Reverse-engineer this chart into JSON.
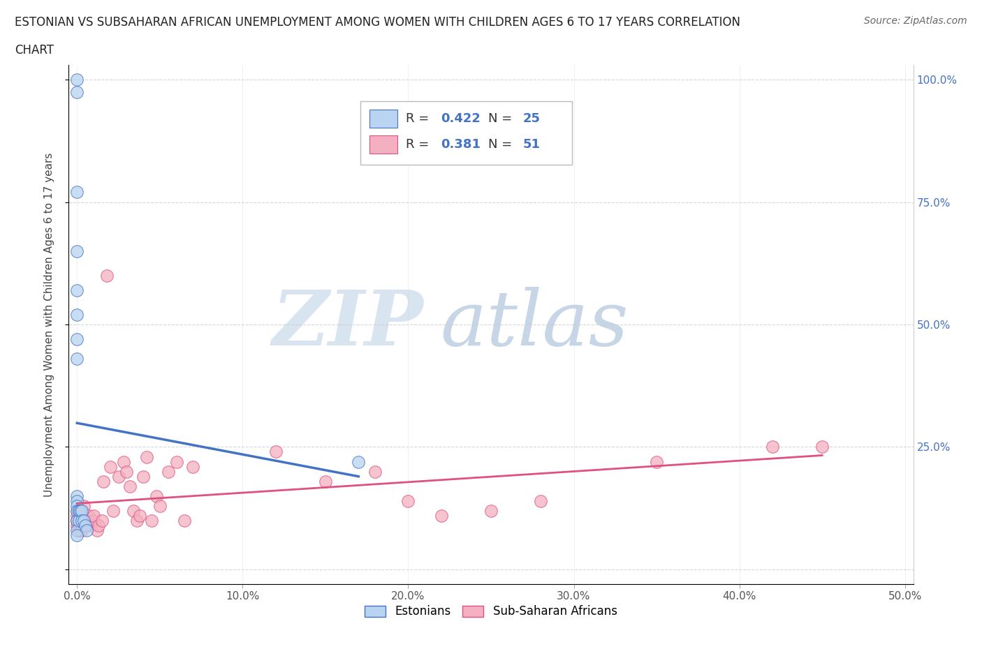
{
  "title_line1": "ESTONIAN VS SUBSAHARAN AFRICAN UNEMPLOYMENT AMONG WOMEN WITH CHILDREN AGES 6 TO 17 YEARS CORRELATION",
  "title_line2": "CHART",
  "source": "Source: ZipAtlas.com",
  "ylabel": "Unemployment Among Women with Children Ages 6 to 17 years",
  "xlim": [
    -0.005,
    0.505
  ],
  "ylim": [
    -0.03,
    1.03
  ],
  "xtick_vals": [
    0.0,
    0.1,
    0.2,
    0.3,
    0.4,
    0.5
  ],
  "xtick_labels": [
    "0.0%",
    "10.0%",
    "20.0%",
    "30.0%",
    "40.0%",
    "50.0%"
  ],
  "ytick_vals": [
    0.0,
    0.25,
    0.5,
    0.75,
    1.0
  ],
  "ytick_labels_right": [
    "",
    "25.0%",
    "50.0%",
    "75.0%",
    "100.0%"
  ],
  "legend_label1": "Estonians",
  "legend_label2": "Sub-Saharan Africans",
  "r1": "0.422",
  "n1": "25",
  "r2": "0.381",
  "n2": "51",
  "color_estonian_fill": "#b8d4f0",
  "color_estonian_edge": "#4472c4",
  "color_subsaharan_fill": "#f4b0c0",
  "color_subsaharan_edge": "#e05080",
  "color_line_estonian": "#4472c4",
  "color_line_subsaharan": "#e05080",
  "color_right_axis": "#4472c4",
  "estonian_x": [
    0.0,
    0.0,
    0.0,
    0.0,
    0.0,
    0.0,
    0.0,
    0.0,
    0.0,
    0.0,
    0.0,
    0.0,
    0.0,
    0.0,
    0.001,
    0.001,
    0.001,
    0.002,
    0.003,
    0.003,
    0.004,
    0.005,
    0.006,
    0.17,
    0.0
  ],
  "estonian_y": [
    1.0,
    0.975,
    0.77,
    0.65,
    0.57,
    0.52,
    0.47,
    0.43,
    0.15,
    0.14,
    0.13,
    0.12,
    0.1,
    0.08,
    0.12,
    0.12,
    0.1,
    0.12,
    0.12,
    0.1,
    0.1,
    0.09,
    0.08,
    0.22,
    0.07
  ],
  "subsaharan_x": [
    0.0,
    0.0,
    0.0,
    0.0,
    0.0,
    0.001,
    0.001,
    0.002,
    0.002,
    0.003,
    0.003,
    0.004,
    0.005,
    0.006,
    0.007,
    0.008,
    0.01,
    0.01,
    0.012,
    0.013,
    0.015,
    0.016,
    0.018,
    0.02,
    0.022,
    0.025,
    0.028,
    0.03,
    0.032,
    0.034,
    0.036,
    0.038,
    0.04,
    0.042,
    0.045,
    0.048,
    0.05,
    0.055,
    0.06,
    0.065,
    0.07,
    0.12,
    0.15,
    0.18,
    0.2,
    0.22,
    0.25,
    0.28,
    0.35,
    0.42,
    0.45
  ],
  "subsaharan_y": [
    0.12,
    0.11,
    0.1,
    0.1,
    0.09,
    0.09,
    0.08,
    0.08,
    0.08,
    0.08,
    0.09,
    0.13,
    0.1,
    0.1,
    0.11,
    0.09,
    0.1,
    0.11,
    0.08,
    0.09,
    0.1,
    0.18,
    0.6,
    0.21,
    0.12,
    0.19,
    0.22,
    0.2,
    0.17,
    0.12,
    0.1,
    0.11,
    0.19,
    0.23,
    0.1,
    0.15,
    0.13,
    0.2,
    0.22,
    0.1,
    0.21,
    0.24,
    0.18,
    0.2,
    0.14,
    0.11,
    0.12,
    0.14,
    0.22,
    0.25,
    0.25
  ]
}
